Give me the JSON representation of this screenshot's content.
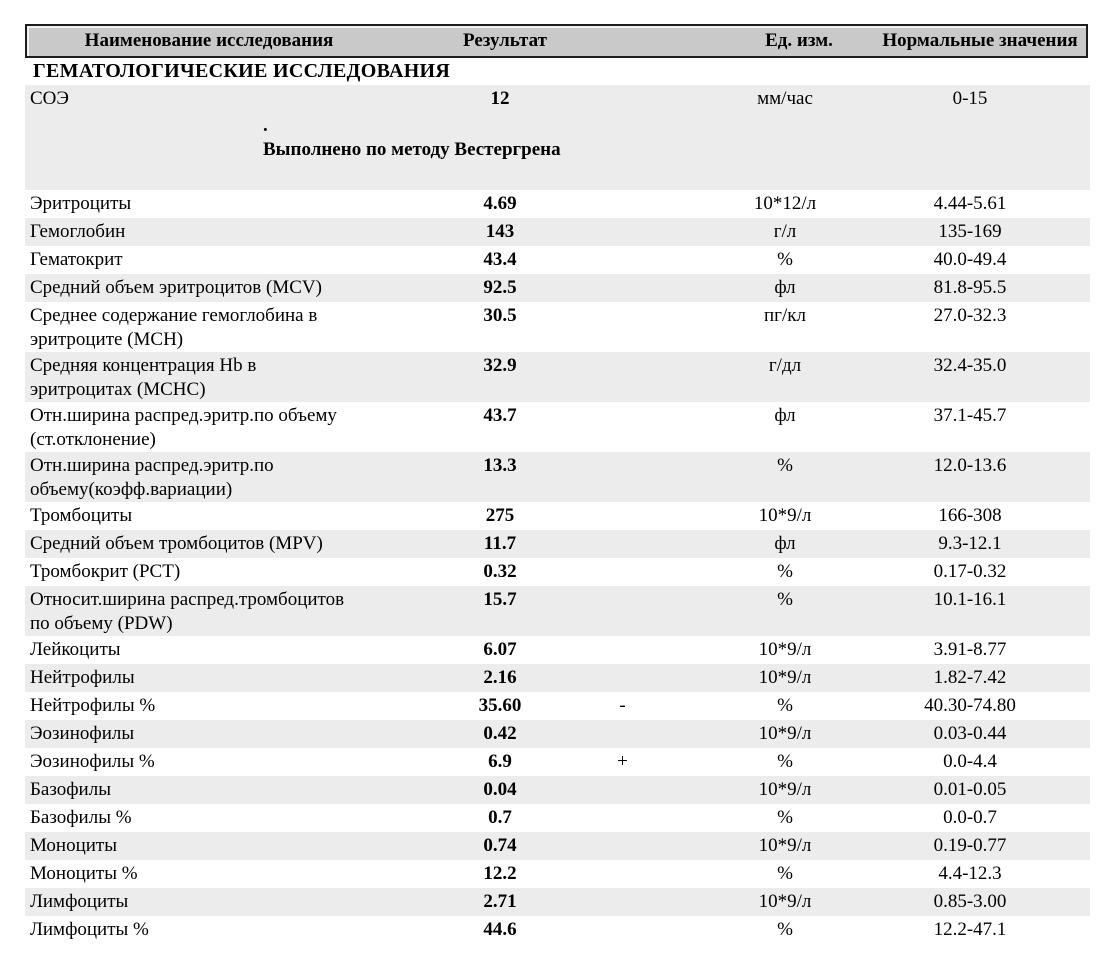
{
  "report": {
    "header": {
      "col_name": "Наименование исследования",
      "col_result": "Результат",
      "col_unit": "Ед. изм.",
      "col_range": "Нормальные значения"
    },
    "section_title": "ГЕМАТОЛОГИЧЕСКИЕ ИССЛЕДОВАНИЯ",
    "rows": [
      {
        "name": "СОЭ",
        "result": "12",
        "flag": "",
        "unit": "мм/час",
        "range": "0-15",
        "note_dot": ".",
        "note": "Выполнено по методу Вестергрена"
      },
      {
        "name": "Эритроциты",
        "result": "4.69",
        "flag": "",
        "unit": "10*12/л",
        "range": "4.44-5.61"
      },
      {
        "name": "Гемоглобин",
        "result": "143",
        "flag": "",
        "unit": "г/л",
        "range": "135-169"
      },
      {
        "name": "Гематокрит",
        "result": "43.4",
        "flag": "",
        "unit": "%",
        "range": "40.0-49.4"
      },
      {
        "name": "Средний объем эритроцитов (MCV)",
        "result": "92.5",
        "flag": "",
        "unit": "фл",
        "range": "81.8-95.5"
      },
      {
        "name": "Среднее содержание гемоглобина в\nэритроците (MCH)",
        "result": "30.5",
        "flag": "",
        "unit": "пг/кл",
        "range": "27.0-32.3"
      },
      {
        "name": "Средняя концентрация Hb в\nэритроцитах (MCHC)",
        "result": "32.9",
        "flag": "",
        "unit": "г/дл",
        "range": "32.4-35.0"
      },
      {
        "name": "Отн.ширина распред.эритр.по объему\n(ст.отклонение)",
        "result": "43.7",
        "flag": "",
        "unit": "фл",
        "range": "37.1-45.7"
      },
      {
        "name": "Отн.ширина распред.эритр.по\nобъему(коэфф.вариации)",
        "result": "13.3",
        "flag": "",
        "unit": "%",
        "range": "12.0-13.6"
      },
      {
        "name": "Тромбоциты",
        "result": "275",
        "flag": "",
        "unit": "10*9/л",
        "range": "166-308"
      },
      {
        "name": "Средний объем тромбоцитов (MPV)",
        "result": "11.7",
        "flag": "",
        "unit": "фл",
        "range": "9.3-12.1"
      },
      {
        "name": "Тромбокрит (PCT)",
        "result": "0.32",
        "flag": "",
        "unit": "%",
        "range": "0.17-0.32"
      },
      {
        "name": "Относит.ширина распред.тромбоцитов\nпо объему (PDW)",
        "result": "15.7",
        "flag": "",
        "unit": "%",
        "range": "10.1-16.1"
      },
      {
        "name": "Лейкоциты",
        "result": "6.07",
        "flag": "",
        "unit": "10*9/л",
        "range": "3.91-8.77"
      },
      {
        "name": "Нейтрофилы",
        "result": "2.16",
        "flag": "",
        "unit": "10*9/л",
        "range": "1.82-7.42"
      },
      {
        "name": "Нейтрофилы %",
        "result": "35.60",
        "flag": "-",
        "unit": "%",
        "range": "40.30-74.80"
      },
      {
        "name": "Эозинофилы",
        "result": "0.42",
        "flag": "",
        "unit": "10*9/л",
        "range": "0.03-0.44"
      },
      {
        "name": "Эозинофилы %",
        "result": "6.9",
        "flag": "+",
        "unit": "%",
        "range": "0.0-4.4"
      },
      {
        "name": "Базофилы",
        "result": "0.04",
        "flag": "",
        "unit": "10*9/л",
        "range": "0.01-0.05"
      },
      {
        "name": "Базофилы %",
        "result": "0.7",
        "flag": "",
        "unit": "%",
        "range": "0.0-0.7"
      },
      {
        "name": "Моноциты",
        "result": "0.74",
        "flag": "",
        "unit": "10*9/л",
        "range": "0.19-0.77"
      },
      {
        "name": "Моноциты %",
        "result": "12.2",
        "flag": "",
        "unit": "%",
        "range": "4.4-12.3"
      },
      {
        "name": "Лимфоциты",
        "result": "2.71",
        "flag": "",
        "unit": "10*9/л",
        "range": "0.85-3.00"
      },
      {
        "name": "Лимфоциты %",
        "result": "44.6",
        "flag": "",
        "unit": "%",
        "range": "12.2-47.1"
      }
    ],
    "colors": {
      "header_bg": "#c9c9c9",
      "row_shade": "#ececec",
      "border": "#1c1c1c",
      "text": "#000000"
    }
  }
}
